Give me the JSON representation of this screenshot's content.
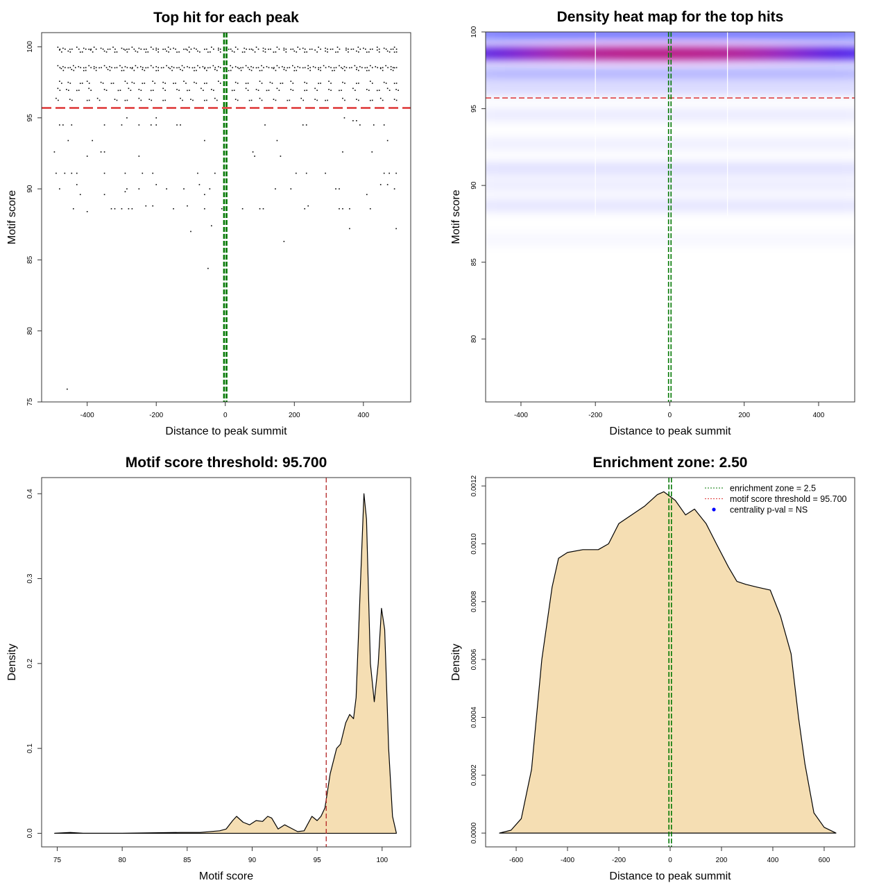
{
  "chart_data": [
    {
      "type": "scatter",
      "title": "Top hit for each peak",
      "xlabel": "Distance to peak summit",
      "ylabel": "Motif score",
      "xlim": [
        -532,
        537
      ],
      "ylim": [
        75,
        101
      ],
      "xticks": [
        -400,
        -200,
        0,
        200,
        400
      ],
      "yticks": [
        75,
        80,
        85,
        90,
        95,
        100
      ],
      "threshold": 95.7,
      "center": 0,
      "colors": {
        "points": "#000000",
        "threshold": "#dd3333",
        "center": "#007700"
      },
      "dense_rows": [
        {
          "score": 99.9,
          "x": [
            -485,
            -470,
            -450,
            -430,
            -410,
            -395,
            -380,
            -360,
            -340,
            -325,
            -300,
            -285,
            -270,
            -250,
            -235,
            -215,
            -200,
            -180,
            -165,
            -150,
            -120,
            -105,
            -90,
            -60,
            -40,
            -20,
            10,
            30,
            55,
            70,
            90,
            110,
            125,
            150,
            170,
            190,
            210,
            225,
            245,
            270,
            290,
            305,
            325,
            350,
            365,
            385,
            400,
            420,
            440,
            460,
            480,
            490
          ]
        },
        {
          "score": 99.7,
          "x": [
            -480,
            -455,
            -420,
            -390,
            -350,
            -320,
            -290,
            -260,
            -230,
            -200,
            -170,
            -140,
            -110,
            -80,
            -50,
            -20,
            20,
            50,
            80,
            110,
            140,
            170,
            200,
            230,
            260,
            290,
            320,
            350,
            380,
            410,
            440,
            470,
            490
          ]
        },
        {
          "score": 98.6,
          "x": [
            -485,
            -470,
            -455,
            -440,
            -425,
            -410,
            -395,
            -380,
            -365,
            -350,
            -335,
            -320,
            -305,
            -290,
            -275,
            -260,
            -245,
            -230,
            -215,
            -200,
            -185,
            -170,
            -155,
            -140,
            -125,
            -110,
            -95,
            -80,
            -65,
            -50,
            -35,
            -20,
            -5,
            15,
            30,
            45,
            60,
            75,
            90,
            105,
            120,
            135,
            150,
            165,
            180,
            195,
            210,
            225,
            240,
            255,
            270,
            285,
            300,
            315,
            330,
            345,
            360,
            375,
            390,
            405,
            420,
            435,
            450,
            465,
            480,
            490
          ]
        },
        {
          "score": 98.4,
          "x": [
            -475,
            -445,
            -410,
            -380,
            -340,
            -300,
            -270,
            -240,
            -200,
            -160,
            -130,
            -90,
            -60,
            -30,
            10,
            40,
            70,
            100,
            140,
            170,
            200,
            240,
            270,
            310,
            340,
            380,
            410,
            450,
            480
          ]
        },
        {
          "score": 97.5,
          "x": [
            -480,
            -455,
            -420,
            -400,
            -360,
            -330,
            -290,
            -270,
            -240,
            -210,
            -180,
            -150,
            -120,
            -90,
            -60,
            -20,
            30,
            60,
            100,
            130,
            160,
            190,
            230,
            270,
            300,
            340,
            380,
            420,
            460,
            490
          ]
        },
        {
          "score": 97.0,
          "x": [
            -485,
            -460,
            -430,
            -395,
            -350,
            -310,
            -280,
            -250,
            -215,
            -180,
            -140,
            -110,
            -70,
            -40,
            20,
            60,
            90,
            120,
            150,
            190,
            230,
            260,
            300,
            330,
            370,
            410,
            440,
            470,
            495
          ]
        },
        {
          "score": 96.3,
          "x": [
            -490,
            -450,
            -400,
            -370,
            -320,
            -290,
            -250,
            -220,
            -180,
            -130,
            -100,
            -60,
            -30,
            30,
            70,
            100,
            140,
            180,
            220,
            260,
            290,
            340,
            380,
            420,
            450,
            490
          ]
        }
      ],
      "points": [
        {
          "x": -458,
          "y": 75.9
        },
        {
          "x": -50,
          "y": 84.4
        },
        {
          "x": 170,
          "y": 86.3
        },
        {
          "x": -100,
          "y": 87.0
        },
        {
          "x": -40,
          "y": 87.4
        },
        {
          "x": 360,
          "y": 87.2
        },
        {
          "x": 495,
          "y": 87.2
        },
        {
          "x": -440,
          "y": 88.6
        },
        {
          "x": -400,
          "y": 88.4
        },
        {
          "x": -330,
          "y": 88.6
        },
        {
          "x": -320,
          "y": 88.6
        },
        {
          "x": -300,
          "y": 88.6
        },
        {
          "x": -280,
          "y": 88.6
        },
        {
          "x": -270,
          "y": 88.6
        },
        {
          "x": -230,
          "y": 88.8
        },
        {
          "x": -210,
          "y": 88.8
        },
        {
          "x": -150,
          "y": 88.6
        },
        {
          "x": -110,
          "y": 88.8
        },
        {
          "x": -60,
          "y": 88.6
        },
        {
          "x": -10,
          "y": 88.6
        },
        {
          "x": 50,
          "y": 88.6
        },
        {
          "x": 100,
          "y": 88.6
        },
        {
          "x": 110,
          "y": 88.6
        },
        {
          "x": 230,
          "y": 88.6
        },
        {
          "x": 240,
          "y": 88.8
        },
        {
          "x": 330,
          "y": 88.6
        },
        {
          "x": 340,
          "y": 88.6
        },
        {
          "x": 360,
          "y": 88.6
        },
        {
          "x": 420,
          "y": 88.6
        },
        {
          "x": -420,
          "y": 89.6
        },
        {
          "x": -350,
          "y": 89.6
        },
        {
          "x": -290,
          "y": 89.8
        },
        {
          "x": -60,
          "y": 89.6
        },
        {
          "x": 410,
          "y": 89.6
        },
        {
          "x": -480,
          "y": 90.0
        },
        {
          "x": -430,
          "y": 90.3
        },
        {
          "x": -285,
          "y": 90.0
        },
        {
          "x": -250,
          "y": 90.0
        },
        {
          "x": -200,
          "y": 90.3
        },
        {
          "x": -170,
          "y": 90.0
        },
        {
          "x": -120,
          "y": 90.0
        },
        {
          "x": -75,
          "y": 90.3
        },
        {
          "x": -45,
          "y": 90.0
        },
        {
          "x": 145,
          "y": 90.0
        },
        {
          "x": 190,
          "y": 90.0
        },
        {
          "x": 320,
          "y": 90.0
        },
        {
          "x": 330,
          "y": 90.0
        },
        {
          "x": 450,
          "y": 90.3
        },
        {
          "x": 470,
          "y": 90.3
        },
        {
          "x": 490,
          "y": 90.0
        },
        {
          "x": -490,
          "y": 91.1
        },
        {
          "x": -465,
          "y": 91.1
        },
        {
          "x": -445,
          "y": 91.1
        },
        {
          "x": -430,
          "y": 91.1
        },
        {
          "x": -350,
          "y": 91.1
        },
        {
          "x": -290,
          "y": 91.1
        },
        {
          "x": -240,
          "y": 91.1
        },
        {
          "x": -210,
          "y": 91.1
        },
        {
          "x": -80,
          "y": 91.1
        },
        {
          "x": -30,
          "y": 91.1
        },
        {
          "x": 205,
          "y": 91.1
        },
        {
          "x": 235,
          "y": 91.1
        },
        {
          "x": 290,
          "y": 91.1
        },
        {
          "x": 460,
          "y": 91.1
        },
        {
          "x": 475,
          "y": 91.1
        },
        {
          "x": 495,
          "y": 91.1
        },
        {
          "x": -495,
          "y": 92.6
        },
        {
          "x": -360,
          "y": 92.6
        },
        {
          "x": -350,
          "y": 92.6
        },
        {
          "x": 80,
          "y": 92.6
        },
        {
          "x": 340,
          "y": 92.6
        },
        {
          "x": 425,
          "y": 92.6
        },
        {
          "x": -400,
          "y": 92.3
        },
        {
          "x": -250,
          "y": 92.3
        },
        {
          "x": 85,
          "y": 92.3
        },
        {
          "x": 160,
          "y": 92.3
        },
        {
          "x": -455,
          "y": 93.4
        },
        {
          "x": -385,
          "y": 93.4
        },
        {
          "x": -60,
          "y": 93.4
        },
        {
          "x": 150,
          "y": 93.4
        },
        {
          "x": 470,
          "y": 93.4
        },
        {
          "x": -480,
          "y": 94.5
        },
        {
          "x": -470,
          "y": 94.5
        },
        {
          "x": -445,
          "y": 94.5
        },
        {
          "x": -350,
          "y": 94.5
        },
        {
          "x": -300,
          "y": 94.5
        },
        {
          "x": -250,
          "y": 94.5
        },
        {
          "x": -215,
          "y": 94.5
        },
        {
          "x": -200,
          "y": 94.5
        },
        {
          "x": -140,
          "y": 94.5
        },
        {
          "x": -130,
          "y": 94.5
        },
        {
          "x": 115,
          "y": 94.5
        },
        {
          "x": 225,
          "y": 94.5
        },
        {
          "x": 235,
          "y": 94.5
        },
        {
          "x": 390,
          "y": 94.5
        },
        {
          "x": 430,
          "y": 94.5
        },
        {
          "x": 460,
          "y": 94.5
        },
        {
          "x": -285,
          "y": 95.0
        },
        {
          "x": -200,
          "y": 95.0
        },
        {
          "x": 345,
          "y": 95.0
        },
        {
          "x": 370,
          "y": 94.8
        },
        {
          "x": 380,
          "y": 94.8
        }
      ]
    },
    {
      "type": "heatmap",
      "title": "Density heat map for the top hits",
      "xlabel": "Distance to peak summit",
      "ylabel": "Motif score",
      "xlim": [
        -495,
        497
      ],
      "ylim": [
        75.9,
        100
      ],
      "xticks": [
        -400,
        -200,
        0,
        200,
        400
      ],
      "yticks": [
        80,
        85,
        90,
        95,
        100
      ],
      "threshold": 95.7,
      "center": 0,
      "colorscale": [
        "#ffffff",
        "#0000ff",
        "#ff0000"
      ],
      "colors": {
        "threshold": "#dd3333",
        "center": "#007700"
      },
      "bands": [
        {
          "score": 99.9,
          "intensity": 0.55
        },
        {
          "score": 98.6,
          "intensity": 1.0
        },
        {
          "score": 97.3,
          "intensity": 0.3
        },
        {
          "score": 96.3,
          "intensity": 0.15
        },
        {
          "score": 94.6,
          "intensity": 0.08
        },
        {
          "score": 92.7,
          "intensity": 0.06
        },
        {
          "score": 91.1,
          "intensity": 0.12
        },
        {
          "score": 90.0,
          "intensity": 0.07
        },
        {
          "score": 88.7,
          "intensity": 0.1
        },
        {
          "score": 86.5,
          "intensity": 0.03
        }
      ]
    },
    {
      "type": "area",
      "title": "Motif score threshold: 95.700",
      "xlabel": "Motif score",
      "ylabel": "Density",
      "xlim": [
        73.8,
        102.2
      ],
      "ylim": [
        -0.016,
        0.419
      ],
      "xticks": [
        75,
        80,
        85,
        90,
        95,
        100
      ],
      "yticks": [
        0.0,
        0.1,
        0.2,
        0.3,
        0.4
      ],
      "ytick_labels": [
        "0.0",
        "0.1",
        "0.2",
        "0.3",
        "0.4"
      ],
      "threshold": 95.7,
      "colors": {
        "fill": "#f5deb3",
        "line": "#000000",
        "threshold": "#b22222"
      },
      "x": [
        74.8,
        76,
        77,
        80,
        84.5,
        86,
        87.5,
        88,
        88.5,
        88.8,
        89.3,
        89.8,
        90.3,
        90.8,
        91.2,
        91.5,
        92,
        92.5,
        93,
        93.5,
        94,
        94.6,
        95,
        95.3,
        95.6,
        96,
        96.5,
        96.8,
        97.2,
        97.5,
        97.8,
        98,
        98.3,
        98.6,
        98.8,
        99.1,
        99.4,
        99.7,
        99.95,
        100.2,
        100.5,
        100.8,
        101.1
      ],
      "y": [
        0,
        0.001,
        0,
        0,
        0.001,
        0.001,
        0.003,
        0.005,
        0.015,
        0.02,
        0.013,
        0.01,
        0.015,
        0.014,
        0.02,
        0.018,
        0.005,
        0.01,
        0.006,
        0.002,
        0.003,
        0.02,
        0.015,
        0.02,
        0.03,
        0.07,
        0.1,
        0.105,
        0.13,
        0.14,
        0.135,
        0.16,
        0.28,
        0.4,
        0.37,
        0.2,
        0.155,
        0.2,
        0.265,
        0.24,
        0.1,
        0.02,
        0
      ]
    },
    {
      "type": "area",
      "title": "Enrichment zone: 2.50",
      "xlabel": "Distance to peak summit",
      "ylabel": "Density",
      "xlim": [
        -719,
        719
      ],
      "ylim": [
        -4.77e-05,
        0.001229
      ],
      "xticks": [
        -600,
        -400,
        -200,
        0,
        200,
        400,
        600
      ],
      "yticks": [
        0,
        0.0002,
        0.0004,
        0.0006,
        0.0008,
        0.001,
        0.0012
      ],
      "ytick_labels": [
        "0.0000",
        "0.0002",
        "0.0004",
        "0.0006",
        "0.0008",
        "0.0010",
        "0.0012"
      ],
      "center": 0,
      "colors": {
        "fill": "#f5deb3",
        "line": "#000000",
        "center": "#007700"
      },
      "x": [
        -665,
        -620,
        -580,
        -540,
        -500,
        -460,
        -435,
        -400,
        -340,
        -280,
        -240,
        -200,
        -150,
        -100,
        -50,
        -25,
        20,
        60,
        95,
        140,
        180,
        227,
        260,
        295,
        340,
        390,
        430,
        471,
        500,
        525,
        560,
        600,
        646
      ],
      "y": [
        0,
        1e-05,
        5e-05,
        0.00022,
        0.0006,
        0.00085,
        0.00095,
        0.00097,
        0.00098,
        0.00098,
        0.001,
        0.00107,
        0.0011,
        0.00113,
        0.00117,
        0.00118,
        0.00115,
        0.0011,
        0.00112,
        0.00107,
        0.001,
        0.00092,
        0.00087,
        0.00086,
        0.00085,
        0.00084,
        0.00075,
        0.00062,
        0.0004,
        0.00024,
        7e-05,
        2e-05,
        0
      ],
      "legend": {
        "position": "top-right",
        "entries": [
          {
            "label": "enrichment zone = 2.5",
            "color": "#007700",
            "style": "dotted-line"
          },
          {
            "label": "motif score threshold = 95.700",
            "color": "#dd3333",
            "style": "dotted-line"
          },
          {
            "label": "centrality p-val = NS",
            "color": "#0000ff",
            "style": "point"
          }
        ]
      }
    }
  ]
}
